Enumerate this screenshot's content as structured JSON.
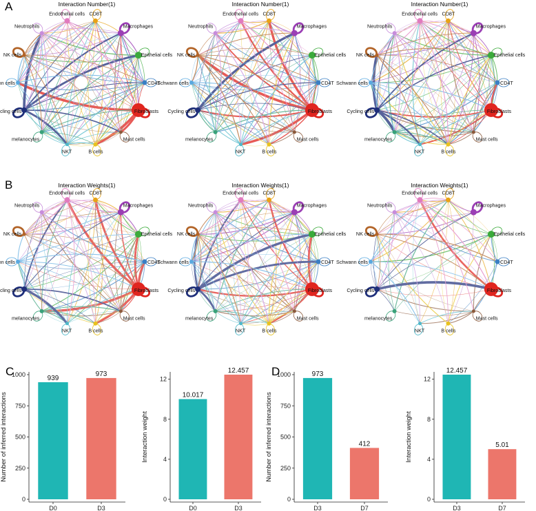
{
  "panels": {
    "A": "A",
    "B": "B",
    "C": "C",
    "D": "D"
  },
  "colors": {
    "teal": "#1FB6B4",
    "salmon": "#EC766B"
  },
  "network": {
    "rows": [
      {
        "title": "Interaction Number(1)"
      },
      {
        "title": "Interaction Weights(1)"
      }
    ],
    "nodes": [
      {
        "name": "CD8T",
        "color": "#E8A316",
        "size": 3.5
      },
      {
        "name": "Macrophages",
        "color": "#9B3FB5",
        "size": 4.5
      },
      {
        "name": "Epithelial cells",
        "color": "#3BAA3B",
        "size": 5
      },
      {
        "name": "CD4T",
        "color": "#3A7FC4",
        "size": 3.5
      },
      {
        "name": "Fibroblasts",
        "color": "#E0251F",
        "size": 10
      },
      {
        "name": "Mast cells",
        "color": "#8C5A3C",
        "size": 2.5
      },
      {
        "name": "B cells",
        "color": "#E8C21E",
        "size": 3
      },
      {
        "name": "NKT",
        "color": "#4EB8C9",
        "size": 2.5
      },
      {
        "name": "melanocytes",
        "color": "#39A27A",
        "size": 3
      },
      {
        "name": "Cycling cells",
        "color": "#1F2F7A",
        "size": 4
      },
      {
        "name": "Schwann cells",
        "color": "#5AA9E0",
        "size": 3
      },
      {
        "name": "NK cells",
        "color": "#B26428",
        "size": 2.5
      },
      {
        "name": "Neutrophils",
        "color": "#C78CDB",
        "size": 3
      },
      {
        "name": "Endothelial cells",
        "color": "#E17ABE",
        "size": 4
      }
    ]
  },
  "chart_data": [
    {
      "type": "bar",
      "panel": "C",
      "categories": [
        "D0",
        "D3"
      ],
      "values": [
        939,
        973
      ],
      "labels": [
        "939",
        "973"
      ],
      "ylabel": "Number of inferred interactions",
      "yticks": [
        0,
        250,
        500,
        750,
        1000
      ],
      "ylim": [
        0,
        1000
      ]
    },
    {
      "type": "bar",
      "panel": "C",
      "categories": [
        "D0",
        "D3"
      ],
      "values": [
        10.017,
        12.457
      ],
      "labels": [
        "10.017",
        "12.457"
      ],
      "ylabel": "Interaction weight",
      "yticks": [
        0,
        4,
        8,
        12
      ],
      "ylim": [
        0,
        12.457
      ]
    },
    {
      "type": "bar",
      "panel": "D",
      "categories": [
        "D3",
        "D7"
      ],
      "values": [
        973,
        412
      ],
      "labels": [
        "973",
        "412"
      ],
      "ylabel": "Number of inferred interactions",
      "yticks": [
        0,
        250,
        500,
        750,
        1000
      ],
      "ylim": [
        0,
        1000
      ]
    },
    {
      "type": "bar",
      "panel": "D",
      "categories": [
        "D3",
        "D7"
      ],
      "values": [
        12.457,
        5.01
      ],
      "labels": [
        "12.457",
        "5.01"
      ],
      "ylabel": "Interaction weight",
      "yticks": [
        0,
        4,
        8,
        12
      ],
      "ylim": [
        0,
        12.457
      ]
    }
  ]
}
